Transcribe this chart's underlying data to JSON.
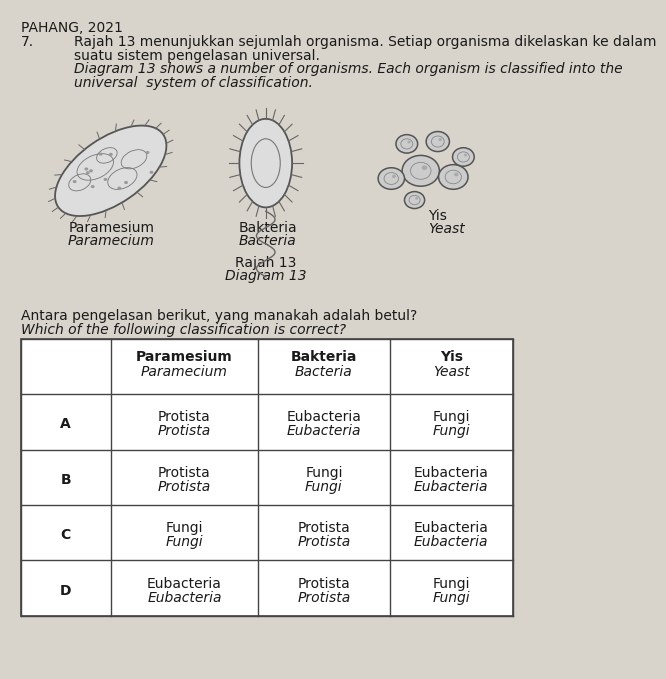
{
  "bg_color": "#d8d4cc",
  "header": "PAHANG, 2021",
  "q_number": "7.",
  "q_text_ms_1": "Rajah 13 menunjukkan sejumlah organisma. Setiap organisma dikelaskan ke dalam",
  "q_text_ms_2": "suatu sistem pengelasan universal.",
  "q_text_en_1": "Diagram 13 shows a number of organisms. Each organism is classified into the",
  "q_text_en_2": "universal  system of classification.",
  "diagram_label_ms": "Rajah 13",
  "diagram_label_en": "Diagram 13",
  "organism1_ms": "Paramesium",
  "organism1_en": "Paramecium",
  "organism2_ms": "Bakteria",
  "organism2_en": "Bacteria",
  "organism3_ms": "Yis",
  "organism3_en": "Yeast",
  "question_ms": "Antara pengelasan berikut, yang manakah adalah betul?",
  "question_en": "Which of the following classification is correct?",
  "col_headers": [
    [
      "Paramesium",
      "Paramecium"
    ],
    [
      "Bakteria",
      "Bacteria"
    ],
    [
      "Yis",
      "Yeast"
    ]
  ],
  "rows": [
    [
      "A",
      [
        "Protista",
        "Protista"
      ],
      [
        "Eubacteria",
        "Eubacteria"
      ],
      [
        "Fungi",
        "Fungi"
      ]
    ],
    [
      "B",
      [
        "Protista",
        "Protista"
      ],
      [
        "Fungi",
        "Fungi"
      ],
      [
        "Eubacteria",
        "Eubacteria"
      ]
    ],
    [
      "C",
      [
        "Fungi",
        "Fungi"
      ],
      [
        "Protista",
        "Protista"
      ],
      [
        "Eubacteria",
        "Eubacteria"
      ]
    ],
    [
      "D",
      [
        "Eubacteria",
        "Eubacteria"
      ],
      [
        "Protista",
        "Protista"
      ],
      [
        "Fungi",
        "Fungi"
      ]
    ]
  ],
  "text_color": "#1a1a1a",
  "table_line_color": "#444444",
  "sketch_color": "#888888",
  "sketch_fill": "#cccccc",
  "sketch_fill2": "#bbbbbb"
}
